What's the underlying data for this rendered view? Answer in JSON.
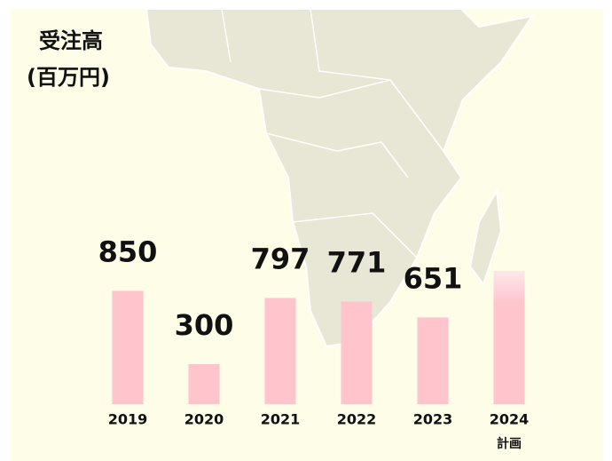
{
  "chart_data": {
    "type": "bar",
    "title": "受注高",
    "subtitle": "(百万円)",
    "categories": [
      "2019",
      "2020",
      "2021",
      "2022",
      "2023",
      "2024"
    ],
    "values": [
      850,
      300,
      797,
      771,
      651,
      1000
    ],
    "value_labels": [
      "850",
      "300",
      "797",
      "771",
      "651",
      null
    ],
    "annotation": "計画",
    "color": "#ffc4cc",
    "ylim": [
      0,
      1000
    ]
  }
}
